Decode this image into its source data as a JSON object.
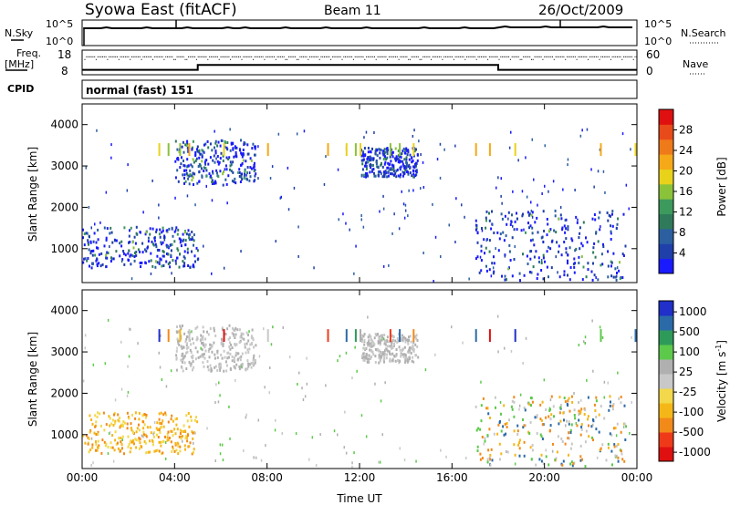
{
  "header": {
    "station": "Syowa East (fitACF)",
    "beam": "Beam 11",
    "date": "26/Oct/2009"
  },
  "nsky_panel": {
    "left_label": "N.Sky",
    "right_label": "N.Search",
    "left_ticks": [
      "10^5",
      "10^0"
    ],
    "right_ticks": [
      "10^5",
      "10^0"
    ]
  },
  "freq_panel": {
    "left_label_1": "Freq.",
    "left_label_2": "[MHz]",
    "right_label": "Nave",
    "left_ticks": [
      "18",
      "8"
    ],
    "right_ticks": [
      "60",
      "0"
    ]
  },
  "cpid": {
    "label": "CPID",
    "value": "normal (fast) 151"
  },
  "colors": {
    "power": [
      "#1a1aff",
      "#1f3faa",
      "#2b5fa0",
      "#2e7a5a",
      "#3c9a5c",
      "#8ac23a",
      "#e8d21a",
      "#f5a818",
      "#ef7a1a",
      "#e84a1a",
      "#e01010"
    ],
    "velocity": [
      "#e01010",
      "#ef3a1a",
      "#f28a1a",
      "#f5b718",
      "#f2d84a",
      "#c8c8c8",
      "#b0b0b0",
      "#5cc94a",
      "#2e9a5a",
      "#2b6aa8",
      "#2030c8"
    ],
    "line": "#000000"
  },
  "chart_data": [
    {
      "type": "line",
      "title": "N.Sky / N.Search",
      "x_range": [
        "00:00",
        "24:00"
      ],
      "series": [
        {
          "name": "N.Sky",
          "values": "near constant ~10^5 with a gap 00:00-00:05"
        },
        {
          "name": "N.Search",
          "values": "dotted, near constant"
        }
      ]
    },
    {
      "type": "line",
      "title": "Freq. [MHz] / Nave",
      "ylim_left": [
        8,
        18
      ],
      "ylim_right": [
        0,
        60
      ],
      "x": [
        "00:00",
        "05:00",
        "05:00",
        "18:00",
        "18:00",
        "24:00"
      ],
      "freq_mhz": [
        10,
        10,
        12,
        12,
        10,
        10
      ],
      "nave_dots": "approx 45 throughout"
    },
    {
      "type": "heatmap",
      "quantity": "Power",
      "ylabel": "Slant Range [km]",
      "yticks": [
        "1000",
        "2000",
        "3000",
        "4000"
      ],
      "xticks": [
        "00:00",
        "04:00",
        "08:00",
        "12:00",
        "16:00",
        "20:00",
        "00:00"
      ],
      "colorbar_label": "Power [dB]",
      "colorbar_ticks": [
        "4",
        "8",
        "12",
        "16",
        "20",
        "24",
        "28"
      ],
      "ylim_km": [
        180,
        4500
      ],
      "regions": [
        {
          "t": [
            0.0,
            5.0
          ],
          "range_km": [
            500,
            1500
          ],
          "dominant": "blue-green"
        },
        {
          "t": [
            4.0,
            7.5
          ],
          "range_km": [
            2500,
            3600
          ],
          "dominant": "blue"
        },
        {
          "t": [
            12.0,
            14.5
          ],
          "range_km": [
            2700,
            3400
          ],
          "dominant": "blue"
        },
        {
          "t": [
            17.0,
            23.5
          ],
          "range_km": [
            200,
            1900
          ],
          "dominant": "blue-green"
        }
      ]
    },
    {
      "type": "heatmap",
      "quantity": "Velocity",
      "ylabel": "Slant Range [km]",
      "xlabel": "Time UT",
      "yticks": [
        "1000",
        "2000",
        "3000",
        "4000"
      ],
      "xticks": [
        "00:00",
        "04:00",
        "08:00",
        "12:00",
        "16:00",
        "20:00",
        "00:00"
      ],
      "colorbar_label": "Velocity [m s^-1]",
      "colorbar_ticks": [
        "1000",
        "500",
        "100",
        "25",
        "-25",
        "-100",
        "-500",
        "-1000"
      ],
      "ylim_km": [
        180,
        4500
      ],
      "regions": [
        {
          "t": [
            0.0,
            5.0
          ],
          "range_km": [
            500,
            1500
          ],
          "dominant": "orange (negative)"
        },
        {
          "t": [
            4.0,
            7.5
          ],
          "range_km": [
            2500,
            3600
          ],
          "dominant": "grey"
        },
        {
          "t": [
            12.0,
            14.5
          ],
          "range_km": [
            2700,
            3400
          ],
          "dominant": "grey"
        },
        {
          "t": [
            17.0,
            23.5
          ],
          "range_km": [
            200,
            1900
          ],
          "dominant": "orange/grey/green"
        }
      ]
    }
  ],
  "axes": {
    "ylabel": "Slant Range [km]",
    "xlabel": "Time UT",
    "yticks": [
      "1000",
      "2000",
      "3000",
      "4000"
    ],
    "xticks": [
      "00:00",
      "04:00",
      "08:00",
      "12:00",
      "16:00",
      "20:00",
      "00:00"
    ],
    "power_cbar_label": "Power [dB]",
    "power_cbar_ticks": [
      "4",
      "8",
      "12",
      "16",
      "20",
      "24",
      "28"
    ],
    "vel_cbar_label": "Velocity [m s",
    "vel_cbar_sup": "-1",
    "vel_cbar_close": "]",
    "vel_cbar_ticks": [
      "1000",
      "500",
      "100",
      "25",
      "-25",
      "-100",
      "-500",
      "-1000"
    ]
  }
}
